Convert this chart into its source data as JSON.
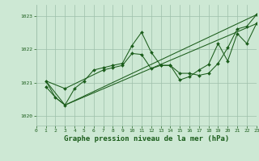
{
  "background_color": "#cde8d4",
  "grid_color": "#9dbfaa",
  "line_color": "#1a5c1a",
  "marker_color": "#1a5c1a",
  "xlabel": "Graphe pression niveau de la mer (hPa)",
  "xlabel_fontsize": 6.5,
  "xlim": [
    0,
    23
  ],
  "ylim": [
    1019.7,
    1023.35
  ],
  "yticks": [
    1020,
    1021,
    1022,
    1023
  ],
  "xticks": [
    0,
    1,
    2,
    3,
    4,
    5,
    6,
    7,
    8,
    9,
    10,
    11,
    12,
    13,
    14,
    15,
    16,
    17,
    18,
    19,
    20,
    21,
    22,
    23
  ],
  "series1_x": [
    1,
    2,
    3,
    4,
    5,
    6,
    7,
    8,
    9,
    10,
    11,
    12,
    13,
    14,
    15,
    16,
    17,
    18,
    19,
    20,
    21,
    22,
    23
  ],
  "series1_y": [
    1020.88,
    1020.55,
    1020.32,
    1020.82,
    1021.05,
    1021.38,
    1021.45,
    1021.52,
    1021.58,
    1022.12,
    1022.52,
    1021.92,
    1021.52,
    1021.52,
    1021.28,
    1021.28,
    1021.22,
    1021.28,
    1021.58,
    1022.05,
    1022.62,
    1022.7,
    1023.05
  ],
  "series2_x": [
    1,
    3,
    7,
    8,
    9,
    10,
    11,
    12,
    13,
    14,
    15,
    16,
    17,
    18,
    19,
    20,
    21,
    22,
    23
  ],
  "series2_y": [
    1021.05,
    1020.82,
    1021.38,
    1021.45,
    1021.52,
    1021.88,
    1021.85,
    1021.42,
    1021.52,
    1021.52,
    1021.08,
    1021.18,
    1021.38,
    1021.55,
    1022.18,
    1021.65,
    1022.48,
    1022.18,
    1022.78
  ],
  "series3_x": [
    1,
    2,
    3,
    23
  ],
  "series3_y": [
    1021.05,
    1020.55,
    1020.32,
    1023.05
  ],
  "series4_x": [
    1,
    3,
    23
  ],
  "series4_y": [
    1021.05,
    1020.32,
    1022.78
  ]
}
